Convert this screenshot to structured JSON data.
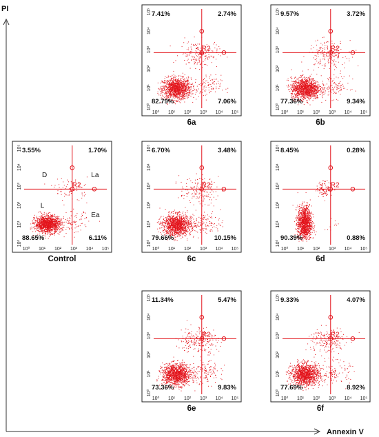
{
  "axes": {
    "y_title": "PI",
    "x_title": "Annexin V"
  },
  "chart_data": [
    {
      "type": "scatter",
      "panel": "6a",
      "x_axis": {
        "scale": "log",
        "range": [
          1,
          100000
        ],
        "tick_labels": [
          "10⁰",
          "10¹",
          "10²",
          "10³",
          "10⁴",
          "10⁵"
        ]
      },
      "y_axis": {
        "scale": "log",
        "range": [
          1,
          100000
        ],
        "tick_labels": [
          "10⁰",
          "10¹",
          "10²",
          "10³",
          "10⁴",
          "10⁵"
        ]
      },
      "gate": {
        "name": "R2",
        "x": 800,
        "y": 600
      },
      "quadrants": {
        "upper_left": "7.41%",
        "upper_right": "2.74%",
        "lower_left": "82.79%",
        "lower_right": "7.06%"
      },
      "caption": "6a"
    },
    {
      "type": "scatter",
      "panel": "6b",
      "x_axis": {
        "scale": "log",
        "range": [
          1,
          100000
        ],
        "tick_labels": [
          "10⁰",
          "10¹",
          "10²",
          "10³",
          "10⁴",
          "10⁵"
        ]
      },
      "y_axis": {
        "scale": "log",
        "range": [
          1,
          100000
        ],
        "tick_labels": [
          "10⁰",
          "10¹",
          "10²",
          "10³",
          "10⁴",
          "10⁵"
        ]
      },
      "gate": {
        "name": "R2",
        "x": 800,
        "y": 600
      },
      "quadrants": {
        "upper_left": "9.57%",
        "upper_right": "3.72%",
        "lower_left": "77.36%",
        "lower_right": "9.34%"
      },
      "caption": "6b"
    },
    {
      "type": "scatter",
      "panel": "Control",
      "x_axis": {
        "scale": "log",
        "range": [
          1,
          100000
        ],
        "tick_labels": [
          "10⁰",
          "10¹",
          "10²",
          "10³",
          "10⁴",
          "10⁵"
        ]
      },
      "y_axis": {
        "scale": "log",
        "range": [
          1,
          100000
        ],
        "tick_labels": [
          "10⁰",
          "10¹",
          "10²",
          "10³",
          "10⁴",
          "10⁵"
        ]
      },
      "gate": {
        "name": "R2",
        "x": 800,
        "y": 600
      },
      "quadrants": {
        "upper_left": "3.55%",
        "upper_right": "1.70%",
        "lower_left": "88.65%",
        "lower_right": "6.11%"
      },
      "region_labels": {
        "upper_left": "D",
        "upper_right": "La",
        "lower_left": "L",
        "lower_right": "Ea"
      },
      "caption": "Control"
    },
    {
      "type": "scatter",
      "panel": "6c",
      "x_axis": {
        "scale": "log",
        "range": [
          1,
          100000
        ],
        "tick_labels": [
          "10⁰",
          "10¹",
          "10²",
          "10³",
          "10⁴",
          "10⁵"
        ]
      },
      "y_axis": {
        "scale": "log",
        "range": [
          1,
          100000
        ],
        "tick_labels": [
          "10⁰",
          "10¹",
          "10²",
          "10³",
          "10⁴",
          "10⁵"
        ]
      },
      "gate": {
        "name": "R2",
        "x": 800,
        "y": 600
      },
      "quadrants": {
        "upper_left": "6.70%",
        "upper_right": "3.48%",
        "lower_left": "79.66%",
        "lower_right": "10.15%"
      },
      "caption": "6c"
    },
    {
      "type": "scatter",
      "panel": "6d",
      "x_axis": {
        "scale": "log",
        "range": [
          1,
          100000
        ],
        "tick_labels": [
          "10⁰",
          "10¹",
          "10²",
          "10³",
          "10⁴",
          "10⁵"
        ]
      },
      "y_axis": {
        "scale": "log",
        "range": [
          1,
          100000
        ],
        "tick_labels": [
          "10⁰",
          "10¹",
          "10²",
          "10³",
          "10⁴",
          "10⁵"
        ]
      },
      "gate": {
        "name": "R2",
        "x": 800,
        "y": 600
      },
      "quadrants": {
        "upper_left": "8.45%",
        "upper_right": "0.28%",
        "lower_left": "90.39%",
        "lower_right": "0.88%"
      },
      "caption": "6d"
    },
    {
      "type": "scatter",
      "panel": "6e",
      "x_axis": {
        "scale": "log",
        "range": [
          1,
          100000
        ],
        "tick_labels": [
          "10⁰",
          "10¹",
          "10²",
          "10³",
          "10⁴",
          "10⁵"
        ]
      },
      "y_axis": {
        "scale": "log",
        "range": [
          1,
          100000
        ],
        "tick_labels": [
          "10⁰",
          "10¹",
          "10²",
          "10³",
          "10⁴",
          "10⁵"
        ]
      },
      "gate": {
        "name": "R2",
        "x": 800,
        "y": 600
      },
      "quadrants": {
        "upper_left": "11.34%",
        "upper_right": "5.47%",
        "lower_left": "73.36%",
        "lower_right": "9.83%"
      },
      "caption": "6e"
    },
    {
      "type": "scatter",
      "panel": "6f",
      "x_axis": {
        "scale": "log",
        "range": [
          1,
          100000
        ],
        "tick_labels": [
          "10⁰",
          "10¹",
          "10²",
          "10³",
          "10⁴",
          "10⁵"
        ]
      },
      "y_axis": {
        "scale": "log",
        "range": [
          1,
          100000
        ],
        "tick_labels": [
          "10⁰",
          "10¹",
          "10²",
          "10³",
          "10⁴",
          "10⁵"
        ]
      },
      "gate": {
        "name": "R2",
        "x": 800,
        "y": 600
      },
      "quadrants": {
        "upper_left": "9.33%",
        "upper_right": "4.07%",
        "lower_left": "77.69%",
        "lower_right": "8.92%"
      },
      "caption": "6f"
    }
  ],
  "colors": {
    "dots": "#e3141c",
    "gate": "#e3141c",
    "frame": "#222222",
    "text": "#111111"
  }
}
